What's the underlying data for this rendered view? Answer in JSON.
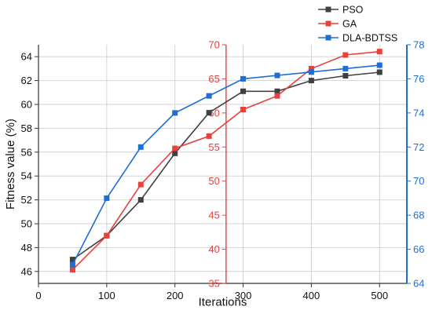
{
  "chart_data": {
    "type": "line",
    "xlabel": "Iterations",
    "x": [
      50,
      100,
      150,
      200,
      250,
      300,
      350,
      400,
      450,
      500
    ],
    "xlim": [
      0,
      540
    ],
    "xticks": [
      0,
      100,
      200,
      300,
      400,
      500
    ],
    "grid": true,
    "legend_position": "top-right",
    "series": [
      {
        "name": "PSO",
        "color": "#404040",
        "axis": "left",
        "values": [
          47.0,
          49.0,
          52.0,
          55.9,
          59.3,
          61.1,
          61.1,
          62.0,
          62.4,
          62.7
        ]
      },
      {
        "name": "GA",
        "color": "#e8413c",
        "axis": "middle",
        "values": [
          37.0,
          42.0,
          49.5,
          54.8,
          56.6,
          60.5,
          62.5,
          66.5,
          68.5,
          69.0
        ]
      },
      {
        "name": "DLA-BDTSS",
        "color": "#1f6ed4",
        "axis": "right",
        "values": [
          65.1,
          69.0,
          72.0,
          74.0,
          75.0,
          76.0,
          76.2,
          76.4,
          76.6,
          76.8
        ]
      }
    ],
    "axes": {
      "left": {
        "label": "Fitness value (%)",
        "color": "#000000",
        "ylim": [
          45,
          65
        ],
        "ticks": [
          46,
          48,
          50,
          52,
          54,
          56,
          58,
          60,
          62,
          64
        ]
      },
      "middle": {
        "label": "",
        "color": "#e8413c",
        "ylim": [
          35,
          70
        ],
        "ticks": [
          35,
          40,
          45,
          50,
          55,
          60,
          65,
          70
        ],
        "x_position": 275
      },
      "right": {
        "label": "",
        "color": "#1f6ed4",
        "ylim": [
          64,
          78
        ],
        "ticks": [
          64,
          66,
          68,
          70,
          72,
          74,
          76,
          78
        ]
      }
    }
  }
}
